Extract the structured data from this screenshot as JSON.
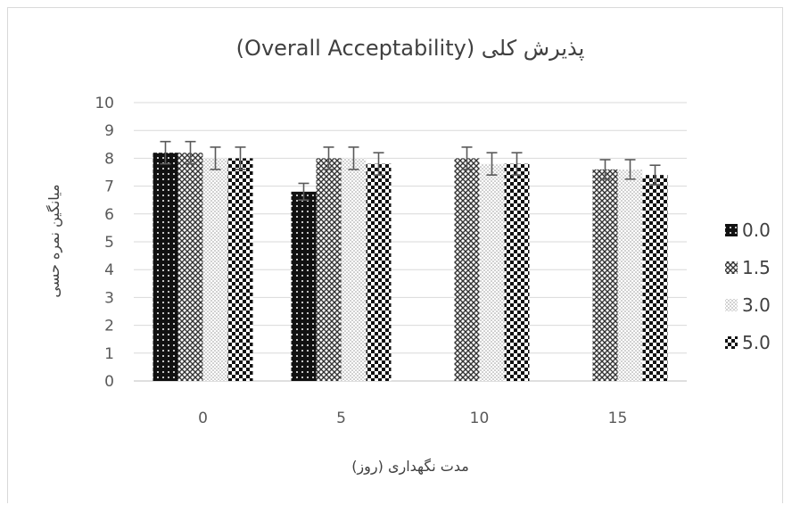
{
  "chart_data": {
    "type": "bar",
    "title": "پذیرش کلی (Overall Acceptability)",
    "xlabel": "مدت نگهداری (روز)",
    "ylabel": "میانگین نمره حسی",
    "categories": [
      "0",
      "5",
      "10",
      "15"
    ],
    "ylim": [
      0,
      10
    ],
    "yticks": [
      0,
      1,
      2,
      3,
      4,
      5,
      6,
      7,
      8,
      9,
      10
    ],
    "grid": true,
    "legend_position": "right",
    "series": [
      {
        "name": "0.0",
        "values": [
          8.2,
          6.8,
          null,
          null
        ],
        "errors": [
          0.4,
          0.3,
          null,
          null
        ],
        "pattern": "dots-on-black"
      },
      {
        "name": "1.5",
        "values": [
          8.2,
          8.0,
          8.0,
          7.6
        ],
        "errors": [
          0.4,
          0.4,
          0.4,
          0.35
        ],
        "pattern": "crosshatch"
      },
      {
        "name": "3.0",
        "values": [
          8.0,
          8.0,
          7.8,
          7.6
        ],
        "errors": [
          0.4,
          0.4,
          0.4,
          0.35
        ],
        "pattern": "light-dots"
      },
      {
        "name": "5.0",
        "values": [
          8.0,
          7.8,
          7.8,
          7.4
        ],
        "errors": [
          0.4,
          0.4,
          0.4,
          0.35
        ],
        "pattern": "checkerboard"
      }
    ]
  }
}
